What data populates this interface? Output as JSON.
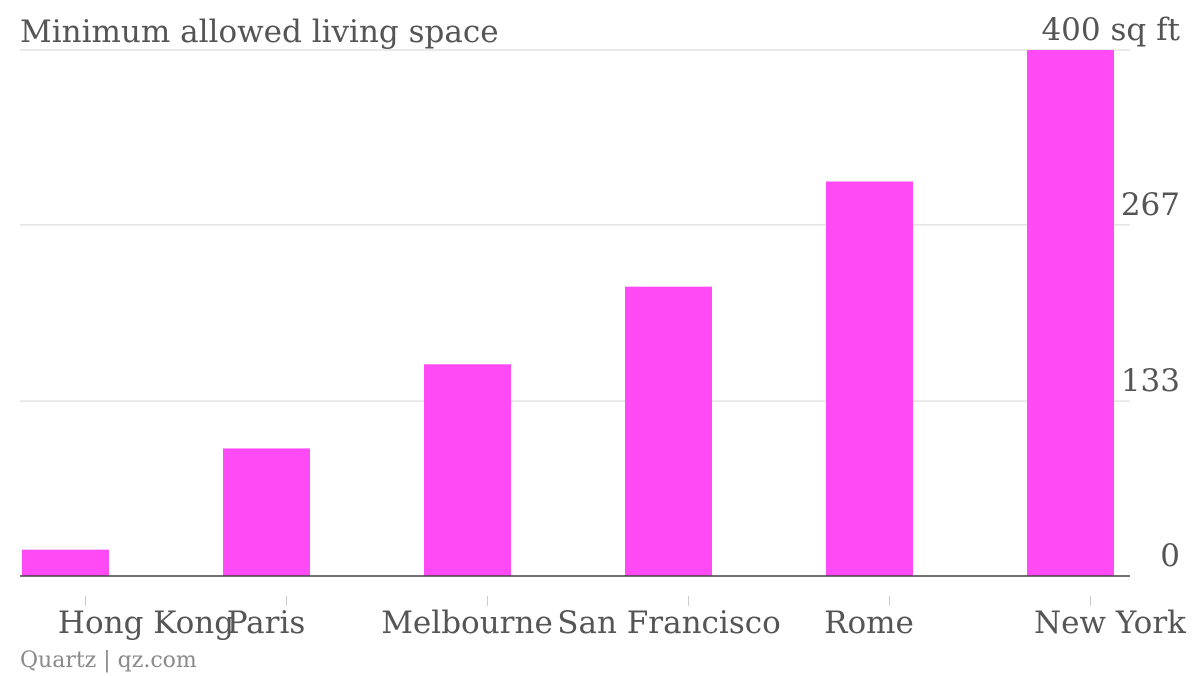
{
  "chart_data": {
    "type": "bar",
    "title": "Minimum allowed living space",
    "unit": "sq ft",
    "categories": [
      "Hong Kong",
      "Paris",
      "Melbourne",
      "San Francisco",
      "Rome",
      "New York"
    ],
    "values": [
      20,
      97,
      161,
      220,
      300,
      400
    ],
    "ylim": [
      0,
      400
    ],
    "yticks": [
      0,
      133,
      267,
      400
    ],
    "ytick_labels": [
      "0",
      "133",
      "267",
      "400 sq ft"
    ],
    "y_axis_side": "right",
    "grid": true,
    "bar_color": "#ff4af5",
    "source": "Quartz | qz.com"
  }
}
